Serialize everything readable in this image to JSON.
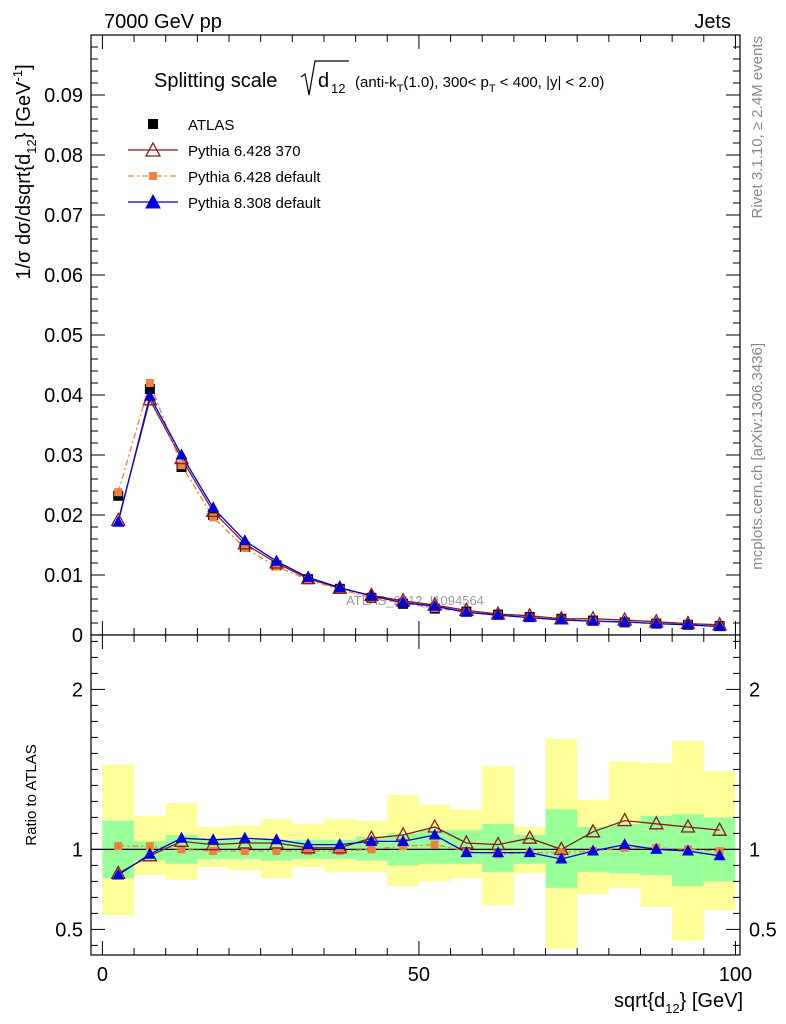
{
  "header": {
    "left": "7000 GeV pp",
    "right": "Jets"
  },
  "side_labels": {
    "rivet": "Rivet 3.1.10, ≥ 2.4M events",
    "mcplots": "mcplots.cern.ch [arXiv:1306.3436]"
  },
  "chart_data": [
    {
      "type": "line",
      "title": "Splitting scale",
      "title_symbol": "d",
      "title_symbol_sub": "12",
      "title_cuts": {
        "pre": "(anti-k",
        "sub1": "T",
        "mid": "(1.0), 300< p",
        "sub2": "T",
        "post": " < 400, |y| < 2.0)"
      },
      "ylabel": {
        "main": "1/σ dσ/dsqrt{d",
        "sub": "12",
        "close": "} [GeV",
        "sup": "-1",
        "end": "]"
      },
      "watermark": "ATLAS_2012_I1094564",
      "xlim": [
        0,
        100
      ],
      "ylim": [
        0,
        0.1
      ],
      "ytick_labels": [
        "0",
        "0.01",
        "0.02",
        "0.03",
        "0.04",
        "0.05",
        "0.06",
        "0.07",
        "0.08",
        "0.09"
      ],
      "x": [
        2.5,
        7.5,
        12.5,
        17.5,
        22.5,
        27.5,
        32.5,
        37.5,
        42.5,
        47.5,
        52.5,
        57.5,
        62.5,
        67.5,
        72.5,
        77.5,
        82.5,
        87.5,
        92.5,
        97.5
      ],
      "legend_placement": "top-left",
      "series": [
        {
          "name": "ATLAS",
          "marker": "square",
          "color": "#000000",
          "values": [
            0.0232,
            0.041,
            0.028,
            0.02,
            0.0147,
            0.0116,
            0.0093,
            0.0077,
            0.0062,
            0.0052,
            0.0044,
            0.0039,
            0.0034,
            0.003,
            0.0027,
            0.0024,
            0.0021,
            0.0019,
            0.0017,
            0.0015
          ]
        },
        {
          "name": "Pythia 6.428 370",
          "marker": "open-triangle",
          "color": "#8b1a1a",
          "values": [
            0.0191,
            0.0392,
            0.0294,
            0.0206,
            0.0152,
            0.012,
            0.0094,
            0.0078,
            0.0066,
            0.0057,
            0.005,
            0.0041,
            0.0035,
            0.0032,
            0.0027,
            0.0027,
            0.0025,
            0.0022,
            0.0019,
            0.0017
          ]
        },
        {
          "name": "Pythia 6.428 default",
          "marker": "filled-square-small",
          "color": "#f08040",
          "values": [
            0.0238,
            0.042,
            0.0283,
            0.0196,
            0.0145,
            0.0114,
            0.0092,
            0.0076,
            0.0062,
            0.0053,
            0.0045,
            0.0038,
            0.0033,
            0.0029,
            0.0026,
            0.0023,
            0.0021,
            0.0019,
            0.0017,
            0.0015
          ]
        },
        {
          "name": "Pythia 8.308 default",
          "marker": "filled-triangle",
          "color": "#0000dd",
          "values": [
            0.0188,
            0.0398,
            0.03,
            0.0212,
            0.0157,
            0.0123,
            0.0096,
            0.0079,
            0.0065,
            0.0054,
            0.0048,
            0.0038,
            0.0033,
            0.0029,
            0.0025,
            0.0023,
            0.0022,
            0.0019,
            0.0017,
            0.0014
          ]
        }
      ]
    },
    {
      "type": "line",
      "ylabel": "Ratio to ATLAS",
      "xlabel": {
        "main": "sqrt{d",
        "sub": "12",
        "post": "} [GeV]"
      },
      "xlim": [
        0,
        100
      ],
      "ylim": [
        0.34,
        2.34
      ],
      "xtick_labels": [
        "0",
        "50",
        "100"
      ],
      "xtick_values": [
        0,
        50,
        100
      ],
      "ytick_labels": [
        "0.5",
        "1",
        "2"
      ],
      "ytick_values": [
        0.5,
        1,
        2
      ],
      "reference_line": 1,
      "bands": {
        "inner_color": "#99ff99",
        "outer_color": "#ffff99",
        "bin_edges": [
          0,
          5,
          10,
          15,
          20,
          25,
          30,
          35,
          40,
          45,
          50,
          55,
          60,
          65,
          70,
          75,
          80,
          85,
          90,
          95,
          100
        ],
        "inner_lo": [
          0.82,
          0.93,
          0.91,
          0.94,
          0.94,
          0.93,
          0.94,
          0.94,
          0.93,
          0.9,
          0.91,
          0.91,
          0.86,
          0.91,
          0.76,
          0.86,
          0.85,
          0.84,
          0.77,
          0.8
        ],
        "inner_hi": [
          1.18,
          1.05,
          1.09,
          1.06,
          1.06,
          1.06,
          1.06,
          1.06,
          1.08,
          1.1,
          1.12,
          1.12,
          1.16,
          1.09,
          1.25,
          1.14,
          1.16,
          1.21,
          1.22,
          1.2
        ],
        "outer_lo": [
          0.59,
          0.84,
          0.81,
          0.89,
          0.87,
          0.82,
          0.89,
          0.86,
          0.86,
          0.77,
          0.8,
          0.82,
          0.65,
          0.85,
          0.38,
          0.72,
          0.76,
          0.64,
          0.43,
          0.62
        ],
        "outer_hi": [
          1.53,
          1.21,
          1.29,
          1.14,
          1.15,
          1.19,
          1.16,
          1.19,
          1.18,
          1.34,
          1.28,
          1.25,
          1.52,
          1.14,
          1.69,
          1.31,
          1.55,
          1.54,
          1.68,
          1.49
        ]
      },
      "series": [
        {
          "name": "Pythia 6.428 370",
          "color": "#8b1a1a",
          "values": [
            0.85,
            0.96,
            1.05,
            1.03,
            1.04,
            1.04,
            1.01,
            1.01,
            1.07,
            1.09,
            1.14,
            1.04,
            1.03,
            1.07,
            1.0,
            1.11,
            1.18,
            1.16,
            1.14,
            1.12
          ]
        },
        {
          "name": "Pythia 6.428 default",
          "color": "#f08040",
          "values": [
            1.02,
            1.02,
            1.0,
            0.99,
            0.99,
            0.99,
            0.99,
            0.99,
            1.0,
            1.02,
            1.03,
            0.99,
            0.97,
            0.98,
            0.98,
            0.99,
            1.01,
            1.01,
            1.0,
            0.99
          ]
        },
        {
          "name": "Pythia 8.308 default",
          "color": "#0000dd",
          "values": [
            0.84,
            0.97,
            1.07,
            1.06,
            1.07,
            1.06,
            1.03,
            1.03,
            1.05,
            1.05,
            1.09,
            0.98,
            0.98,
            0.98,
            0.94,
            0.99,
            1.03,
            1.0,
            0.99,
            0.96
          ]
        }
      ]
    }
  ]
}
